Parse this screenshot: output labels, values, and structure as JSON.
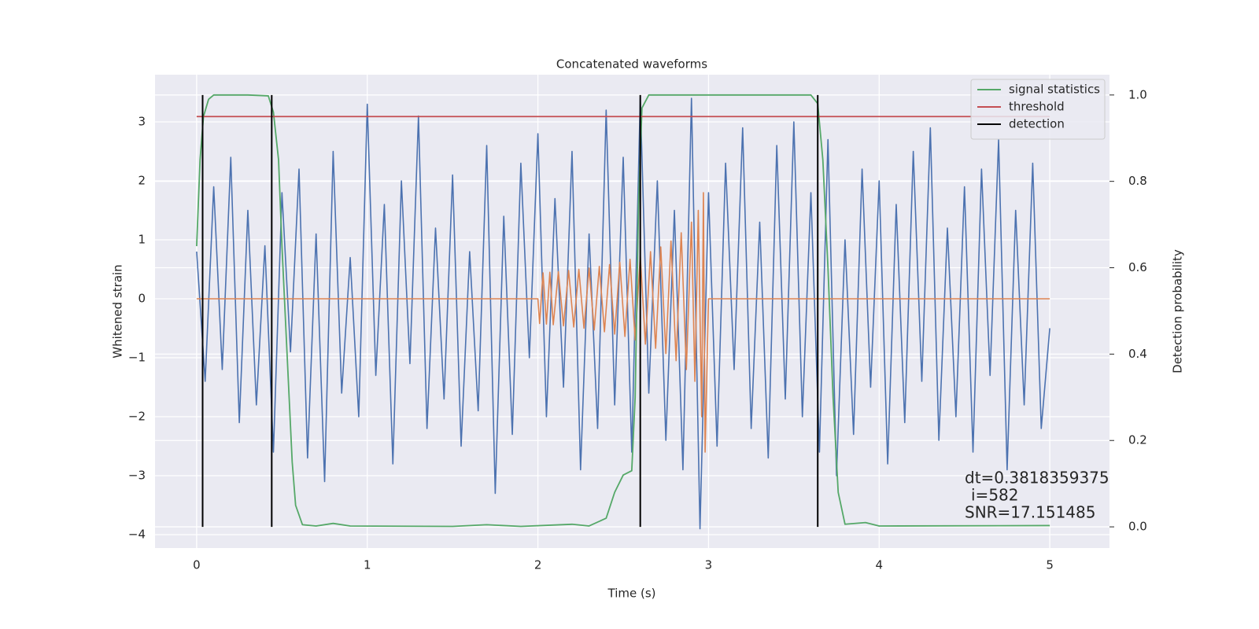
{
  "chart_data": {
    "type": "line",
    "title": "Concatenated waveforms",
    "x_label": "Time (s)",
    "y_label": "Whitened strain",
    "y2_label": "Detection probability",
    "xlim": [
      -0.244,
      5.35
    ],
    "ylim": [
      -4.227,
      3.8
    ],
    "y2lim": [
      -0.049,
      1.047
    ],
    "xticks": [
      0,
      1,
      2,
      3,
      4,
      5
    ],
    "yticks": [
      {
        "value": -4,
        "label": "−4"
      },
      {
        "value": -3,
        "label": "−3"
      },
      {
        "value": -2,
        "label": "−2"
      },
      {
        "value": -1,
        "label": "−1"
      },
      0,
      1,
      2,
      3
    ],
    "y2ticks": [
      {
        "value": 0,
        "label": "0.0"
      },
      {
        "value": 0.2,
        "label": "0.2"
      },
      {
        "value": 0.4,
        "label": "0.4"
      },
      {
        "value": 0.6,
        "label": "0.6"
      },
      {
        "value": 0.8,
        "label": "0.8"
      },
      {
        "value": 1,
        "label": "1.0"
      }
    ],
    "grid": true,
    "legend": "upper right",
    "annotation": [
      "dt=0.3818359375",
      "i=582",
      "SNR=17.151485"
    ],
    "series": [
      {
        "color": "#4c72b0",
        "x": [
          0,
          0.05,
          0.1,
          0.15,
          0.2,
          0.25,
          0.3,
          0.35,
          0.4,
          0.45,
          0.5,
          0.55,
          0.6,
          0.65,
          0.7,
          0.75,
          0.8,
          0.85,
          0.9,
          0.95,
          1,
          1.05,
          1.1,
          1.15,
          1.2,
          1.25,
          1.3,
          1.35,
          1.4,
          1.45,
          1.5,
          1.55,
          1.6,
          1.65,
          1.7,
          1.75,
          1.8,
          1.85,
          1.9,
          1.95,
          2,
          2.05,
          2.1,
          2.15,
          2.2,
          2.25,
          2.3,
          2.35,
          2.4,
          2.45,
          2.5,
          2.55,
          2.6,
          2.65,
          2.7,
          2.75,
          2.8,
          2.85,
          2.9,
          2.95,
          3,
          3.05,
          3.1,
          3.15,
          3.2,
          3.25,
          3.3,
          3.35,
          3.4,
          3.45,
          3.5,
          3.55,
          3.6,
          3.65,
          3.7,
          3.75,
          3.8,
          3.85,
          3.9,
          3.95,
          4,
          4.05,
          4.1,
          4.15,
          4.2,
          4.25,
          4.3,
          4.35,
          4.4,
          4.45,
          4.5,
          4.55,
          4.6,
          4.65,
          4.7,
          4.75,
          4.8,
          4.85,
          4.9,
          4.95,
          5
        ],
        "values": [
          0.8,
          -1.4,
          1.9,
          -1.2,
          2.4,
          -2.1,
          1.5,
          -1.8,
          0.9,
          -2.6,
          1.8,
          -0.9,
          2.2,
          -2.7,
          1.1,
          -3.1,
          2.5,
          -1.6,
          0.7,
          -2.0,
          3.3,
          -1.3,
          1.6,
          -2.8,
          2.0,
          -1.1,
          3.1,
          -2.2,
          1.2,
          -1.7,
          2.1,
          -2.5,
          0.8,
          -1.9,
          2.6,
          -3.3,
          1.4,
          -2.3,
          2.3,
          -1.0,
          2.8,
          -2.0,
          1.7,
          -1.5,
          2.5,
          -2.9,
          1.1,
          -2.2,
          3.2,
          -1.8,
          2.4,
          -2.6,
          3.4,
          -1.6,
          2.0,
          -2.4,
          1.5,
          -2.9,
          3.4,
          -3.9,
          1.8,
          -2.5,
          2.3,
          -1.2,
          2.9,
          -2.2,
          1.3,
          -2.7,
          2.6,
          -1.7,
          3.0,
          -2.0,
          1.8,
          -2.6,
          2.7,
          -3.0,
          1.0,
          -2.3,
          2.2,
          -1.5,
          2.0,
          -2.8,
          1.6,
          -2.1,
          2.5,
          -1.4,
          2.9,
          -2.4,
          1.2,
          -2.0,
          1.9,
          -2.6,
          2.2,
          -1.3,
          2.7,
          -2.9,
          1.5,
          -1.8,
          2.3,
          -2.2,
          -0.5
        ]
      },
      {
        "color": "#dd8452",
        "x": [
          0,
          2,
          2.01,
          2.03,
          2.05,
          2.07,
          2.09,
          2.12,
          2.15,
          2.18,
          2.21,
          2.24,
          2.27,
          2.3,
          2.33,
          2.36,
          2.39,
          2.42,
          2.45,
          2.48,
          2.51,
          2.54,
          2.57,
          2.6,
          2.63,
          2.66,
          2.69,
          2.72,
          2.75,
          2.78,
          2.81,
          2.84,
          2.87,
          2.9,
          2.92,
          2.94,
          2.96,
          2.97,
          2.98,
          3,
          5
        ],
        "values": [
          0,
          0,
          -0.42,
          0.44,
          -0.43,
          0.45,
          -0.44,
          0.46,
          -0.46,
          0.48,
          -0.48,
          0.5,
          -0.5,
          0.52,
          -0.53,
          0.55,
          -0.56,
          0.58,
          -0.6,
          0.62,
          -0.64,
          0.67,
          -0.7,
          0.73,
          -0.77,
          0.8,
          -0.84,
          0.88,
          -0.93,
          0.98,
          -1.05,
          1.12,
          -1.2,
          1.3,
          -1.4,
          1.5,
          -2.0,
          1.8,
          -2.6,
          0,
          0
        ]
      },
      {
        "name": "signal statistics",
        "color": "#55a868",
        "axis": "y2",
        "x": [
          0,
          0.02,
          0.04,
          0.07,
          0.1,
          0.3,
          0.42,
          0.45,
          0.48,
          0.5,
          0.53,
          0.56,
          0.58,
          0.62,
          0.7,
          0.8,
          0.9,
          1.5,
          1.7,
          1.9,
          2.2,
          2.3,
          2.4,
          2.45,
          2.5,
          2.55,
          2.57,
          2.59,
          2.61,
          2.65,
          3.6,
          3.64,
          3.67,
          3.7,
          3.73,
          3.76,
          3.8,
          3.92,
          4.0,
          5
        ],
        "values": [
          0.65,
          0.85,
          0.95,
          0.99,
          1.0,
          1.0,
          0.998,
          0.96,
          0.85,
          0.65,
          0.4,
          0.15,
          0.05,
          0.005,
          0.002,
          0.008,
          0.002,
          0.001,
          0.005,
          0.001,
          0.006,
          0.002,
          0.02,
          0.08,
          0.12,
          0.13,
          0.3,
          0.75,
          0.97,
          1.0,
          1.0,
          0.98,
          0.85,
          0.6,
          0.3,
          0.08,
          0.006,
          0.01,
          0.002,
          0.003
        ]
      },
      {
        "name": "threshold",
        "color": "#c44e52",
        "axis": "y2",
        "x": [
          0,
          5
        ],
        "values": [
          0.95,
          0.95
        ]
      },
      {
        "name": "detection",
        "color": "#000000",
        "axis": "y2",
        "x": [
          0.035,
          0.44,
          2.6,
          3.64
        ],
        "values": [
          1,
          1,
          1,
          1
        ]
      }
    ]
  }
}
